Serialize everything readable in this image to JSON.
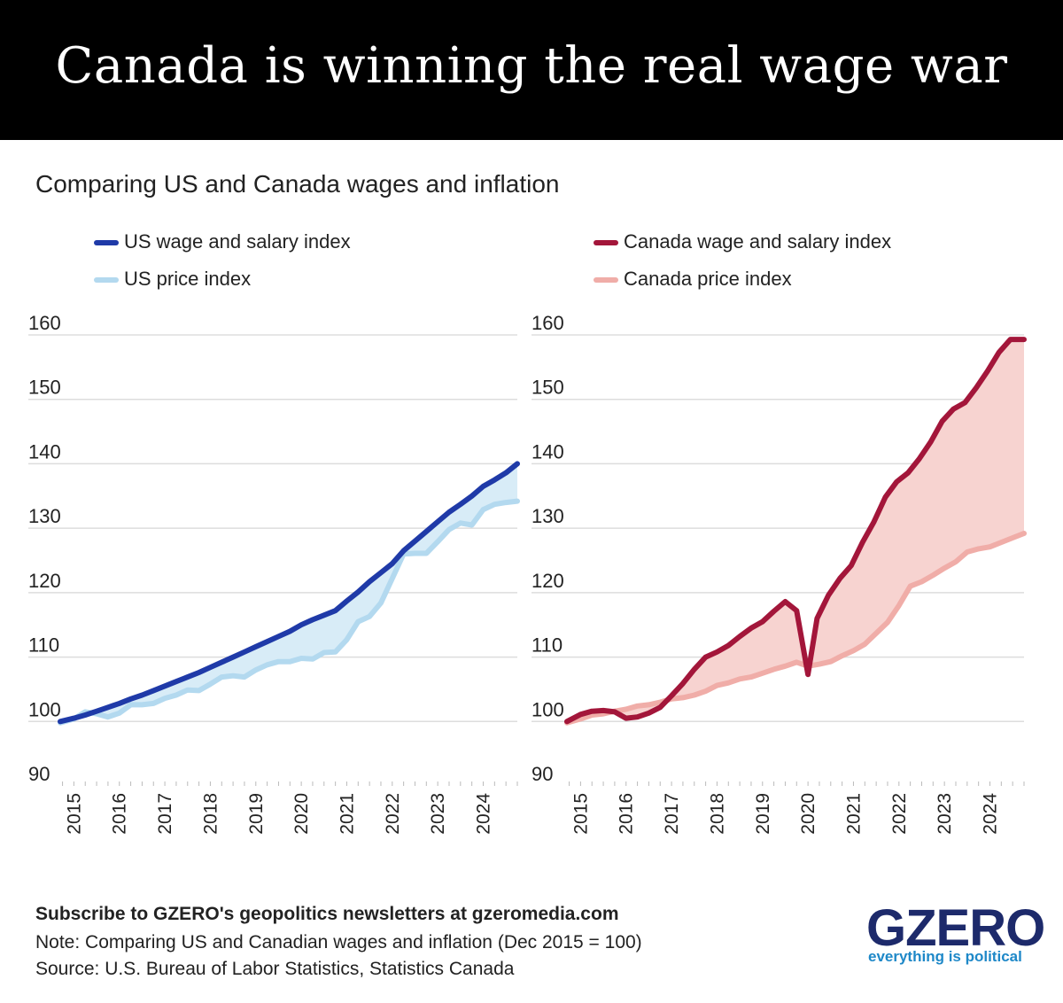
{
  "title": "Canada is winning the real wage war",
  "subtitle": "Comparing US and Canada wages and inflation",
  "colors": {
    "us_wage": "#1f3aa8",
    "us_price": "#b3d9ef",
    "us_fill": "#d8ecf7",
    "ca_wage": "#a3163a",
    "ca_price": "#f0ada8",
    "ca_fill": "#f7d3d0",
    "grid": "#dddddd"
  },
  "chart_data": [
    {
      "type": "line",
      "ylim": [
        90,
        160
      ],
      "y_ticks": [
        90,
        100,
        110,
        120,
        130,
        140,
        150,
        160
      ],
      "x_tick_labels": [
        "2015",
        "2016",
        "2017",
        "2018",
        "2019",
        "2020",
        "2021",
        "2022",
        "2023",
        "2024"
      ],
      "x_range": [
        2014.7,
        2024.75
      ],
      "fill_between": true,
      "series": [
        {
          "name": "US wage and salary index",
          "x": [
            2014.7,
            2015,
            2015.25,
            2015.5,
            2015.75,
            2016,
            2016.25,
            2016.5,
            2016.75,
            2017,
            2017.25,
            2017.5,
            2017.75,
            2018,
            2018.25,
            2018.5,
            2018.75,
            2019,
            2019.25,
            2019.5,
            2019.75,
            2020,
            2020.25,
            2020.5,
            2020.75,
            2021,
            2021.25,
            2021.5,
            2021.75,
            2022,
            2022.25,
            2022.5,
            2022.75,
            2023,
            2023.25,
            2023.5,
            2023.75,
            2024,
            2024.25,
            2024.5,
            2024.75
          ],
          "values": [
            100,
            100.5,
            101,
            101.6,
            102.2,
            102.8,
            103.5,
            104.1,
            104.8,
            105.5,
            106.2,
            106.9,
            107.6,
            108.4,
            109.2,
            110,
            110.8,
            111.6,
            112.4,
            113.2,
            114,
            115,
            115.8,
            116.5,
            117.2,
            118.7,
            120.1,
            121.7,
            123.1,
            124.5,
            126.5,
            128,
            129.5,
            131,
            132.5,
            133.7,
            135,
            136.5,
            137.5,
            138.6,
            140
          ]
        },
        {
          "name": "US price index",
          "x": [
            2014.7,
            2015,
            2015.25,
            2015.5,
            2015.75,
            2016,
            2016.25,
            2016.5,
            2016.75,
            2017,
            2017.25,
            2017.5,
            2017.75,
            2018,
            2018.25,
            2018.5,
            2018.75,
            2019,
            2019.25,
            2019.5,
            2019.75,
            2020,
            2020.25,
            2020.5,
            2020.75,
            2021,
            2021.25,
            2021.5,
            2021.75,
            2022,
            2022.25,
            2022.5,
            2022.75,
            2023,
            2023.25,
            2023.5,
            2023.75,
            2024,
            2024.25,
            2024.5,
            2024.75
          ],
          "values": [
            99.8,
            100.4,
            101.5,
            101.2,
            100.7,
            101.3,
            102.6,
            102.6,
            102.8,
            103.6,
            104.1,
            104.9,
            104.8,
            105.8,
            106.9,
            107.1,
            106.9,
            108,
            108.8,
            109.3,
            109.3,
            109.8,
            109.7,
            110.7,
            110.8,
            112.7,
            115.5,
            116.3,
            118.4,
            122.2,
            126,
            126.1,
            126.1,
            127.9,
            129.8,
            130.8,
            130.5,
            132.9,
            133.7,
            134,
            134.2
          ]
        }
      ]
    },
    {
      "type": "line",
      "ylim": [
        90,
        160
      ],
      "y_ticks": [
        90,
        100,
        110,
        120,
        130,
        140,
        150,
        160
      ],
      "x_tick_labels": [
        "2015",
        "2016",
        "2017",
        "2018",
        "2019",
        "2020",
        "2021",
        "2022",
        "2023",
        "2024"
      ],
      "x_range": [
        2014.7,
        2024.75
      ],
      "fill_between": true,
      "series": [
        {
          "name": "Canada wage and salary index",
          "x": [
            2014.7,
            2015,
            2015.25,
            2015.5,
            2015.75,
            2016,
            2016.25,
            2016.5,
            2016.75,
            2017,
            2017.25,
            2017.5,
            2017.75,
            2018,
            2018.25,
            2018.5,
            2018.75,
            2019,
            2019.25,
            2019.5,
            2019.75,
            2020,
            2020.2,
            2020.45,
            2020.7,
            2020.95,
            2021.2,
            2021.45,
            2021.7,
            2021.95,
            2022.2,
            2022.45,
            2022.7,
            2022.95,
            2023.2,
            2023.45,
            2023.7,
            2023.95,
            2024.2,
            2024.45,
            2024.75
          ],
          "values": [
            100,
            101.1,
            101.6,
            101.7,
            101.5,
            100.5,
            100.7,
            101.3,
            102.2,
            104,
            105.9,
            108.1,
            110,
            110.8,
            111.8,
            113.2,
            114.5,
            115.5,
            117.1,
            118.6,
            117.2,
            107.3,
            116,
            119.6,
            122.2,
            124.2,
            127.8,
            131,
            134.8,
            137.2,
            138.6,
            140.8,
            143.4,
            146.6,
            148.5,
            149.5,
            151.8,
            154.4,
            157.3,
            159.3,
            159.3
          ]
        },
        {
          "name": "Canada price index",
          "x": [
            2014.7,
            2015,
            2015.25,
            2015.5,
            2015.75,
            2016,
            2016.25,
            2016.5,
            2016.75,
            2017,
            2017.25,
            2017.5,
            2017.75,
            2018,
            2018.25,
            2018.5,
            2018.75,
            2019,
            2019.25,
            2019.5,
            2019.75,
            2020,
            2020.25,
            2020.5,
            2020.75,
            2021,
            2021.25,
            2021.5,
            2021.75,
            2022,
            2022.25,
            2022.5,
            2022.75,
            2023,
            2023.25,
            2023.5,
            2023.75,
            2024,
            2024.25,
            2024.5,
            2024.75
          ],
          "values": [
            99.8,
            100.4,
            101,
            101.2,
            101.6,
            101.9,
            102.4,
            102.6,
            103,
            103.5,
            103.7,
            104.1,
            104.7,
            105.6,
            106,
            106.6,
            106.9,
            107.5,
            108.1,
            108.6,
            109.2,
            108.6,
            108.9,
            109.3,
            110.2,
            111,
            112,
            113.7,
            115.4,
            118,
            121,
            121.7,
            122.7,
            123.8,
            124.8,
            126.3,
            126.8,
            127.1,
            127.8,
            128.5,
            129.2
          ]
        }
      ]
    }
  ],
  "footer": {
    "subscribe": "Subscribe to GZERO's geopolitics newsletters at gzeromedia.com",
    "note": "Note: Comparing US and Canadian wages and inflation (Dec 2015 = 100)",
    "source": "Source: U.S. Bureau of Labor Statistics, Statistics Canada"
  },
  "logo": {
    "wordmark": "GZERO",
    "tagline": "everything is political"
  }
}
